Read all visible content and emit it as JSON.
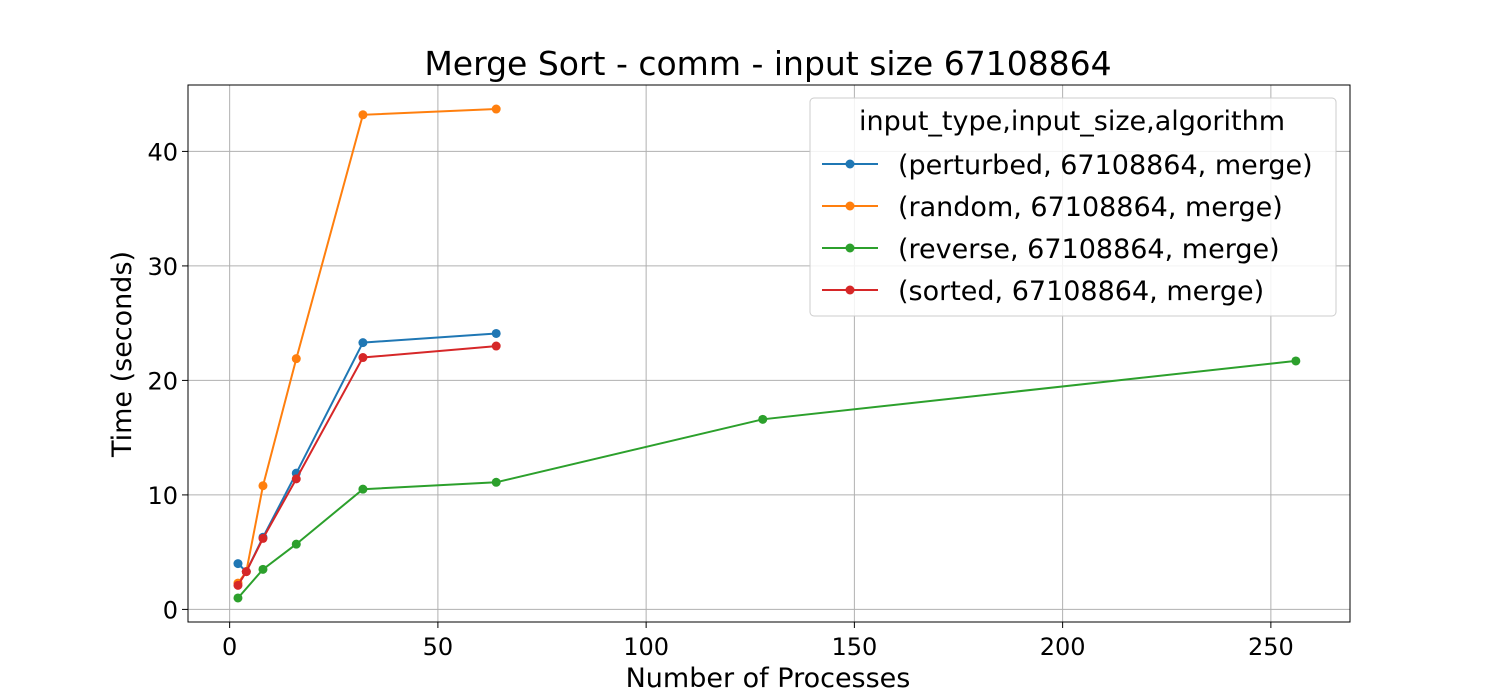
{
  "chart_data": {
    "type": "line",
    "title": "Merge Sort - comm - input size 67108864",
    "xlabel": "Number of Processes",
    "ylabel": "Time (seconds)",
    "xlim": [
      -10,
      269
    ],
    "ylim": [
      -1.1,
      45.8
    ],
    "xticks": [
      0,
      50,
      100,
      150,
      200,
      250
    ],
    "yticks": [
      0,
      10,
      20,
      30,
      40
    ],
    "grid": true,
    "legend": {
      "title": "input_type,input_size,algorithm",
      "placement": "top-right"
    },
    "series": [
      {
        "name": "(perturbed, 67108864, merge)",
        "color": "#1f77b4",
        "x": [
          2,
          4,
          8,
          16,
          32,
          64
        ],
        "y": [
          4.0,
          3.3,
          6.3,
          11.9,
          23.3,
          24.1
        ]
      },
      {
        "name": "(random, 67108864, merge)",
        "color": "#ff7f0e",
        "x": [
          2,
          4,
          8,
          16,
          32,
          64
        ],
        "y": [
          2.3,
          3.3,
          10.8,
          21.9,
          43.2,
          43.7
        ]
      },
      {
        "name": "(reverse, 67108864, merge)",
        "color": "#2ca02c",
        "x": [
          2,
          8,
          16,
          32,
          64,
          128,
          256
        ],
        "y": [
          1.0,
          3.5,
          5.7,
          10.5,
          11.1,
          16.6,
          21.7
        ]
      },
      {
        "name": "(sorted, 67108864, merge)",
        "color": "#d62728",
        "x": [
          2,
          4,
          8,
          16,
          32,
          64
        ],
        "y": [
          2.1,
          3.3,
          6.2,
          11.4,
          22.0,
          23.0
        ]
      }
    ]
  }
}
